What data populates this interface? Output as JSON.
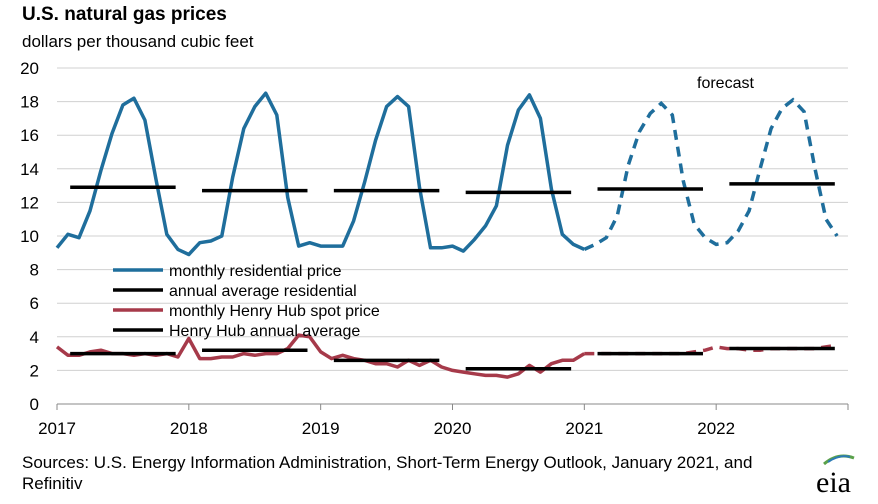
{
  "chart_data": {
    "type": "line",
    "title": "U.S. natural gas prices",
    "subtitle": "dollars per thousand cubic feet",
    "ylim": [
      0,
      20
    ],
    "yticks": [
      0,
      2,
      4,
      6,
      8,
      10,
      12,
      14,
      16,
      18,
      20
    ],
    "xlim": [
      2017,
      2023
    ],
    "xticks": [
      "2017",
      "2018",
      "2019",
      "2020",
      "2021",
      "2022"
    ],
    "grid": "horizontal",
    "legend_position": "middle-left",
    "annotation": "forecast",
    "forecast_start": 2021,
    "series": [
      {
        "name": "monthly residential price",
        "color": "#1f6e9c",
        "style": "solid",
        "forecast_style": "dashed",
        "x": [
          2017.0,
          2017.083,
          2017.167,
          2017.25,
          2017.333,
          2017.417,
          2017.5,
          2017.583,
          2017.667,
          2017.75,
          2017.833,
          2017.917,
          2018.0,
          2018.083,
          2018.167,
          2018.25,
          2018.333,
          2018.417,
          2018.5,
          2018.583,
          2018.667,
          2018.75,
          2018.833,
          2018.917,
          2019.0,
          2019.083,
          2019.167,
          2019.25,
          2019.333,
          2019.417,
          2019.5,
          2019.583,
          2019.667,
          2019.75,
          2019.833,
          2019.917,
          2020.0,
          2020.083,
          2020.167,
          2020.25,
          2020.333,
          2020.417,
          2020.5,
          2020.583,
          2020.667,
          2020.75,
          2020.833,
          2020.917,
          2021.0,
          2021.083,
          2021.167,
          2021.25,
          2021.333,
          2021.417,
          2021.5,
          2021.583,
          2021.667,
          2021.75,
          2021.833,
          2021.917,
          2022.0,
          2022.083,
          2022.167,
          2022.25,
          2022.333,
          2022.417,
          2022.5,
          2022.583,
          2022.667,
          2022.75,
          2022.833,
          2022.917
        ],
        "y": [
          9.3,
          10.1,
          9.9,
          11.5,
          13.9,
          16.1,
          17.8,
          18.2,
          16.9,
          13.4,
          10.1,
          9.2,
          8.9,
          9.6,
          9.7,
          10.0,
          13.5,
          16.4,
          17.7,
          18.5,
          17.2,
          12.3,
          9.4,
          9.6,
          9.4,
          9.4,
          9.4,
          10.9,
          13.2,
          15.7,
          17.7,
          18.3,
          17.7,
          12.9,
          9.3,
          9.3,
          9.4,
          9.1,
          9.8,
          10.6,
          11.8,
          15.4,
          17.5,
          18.4,
          17.0,
          12.8,
          10.1,
          9.5,
          9.2,
          9.5,
          9.9,
          11.2,
          14.2,
          16.2,
          17.3,
          17.9,
          17.2,
          13.3,
          10.7,
          9.9,
          9.5,
          9.6,
          10.3,
          11.5,
          14.0,
          16.4,
          17.6,
          18.1,
          17.4,
          14.0,
          11.0,
          10.0
        ],
        "forecast_from_x": 2021.0
      },
      {
        "name": "annual average residential",
        "color": "#000000",
        "segments": [
          {
            "x0": 2017.1,
            "x1": 2017.9,
            "y": 12.9
          },
          {
            "x0": 2018.1,
            "x1": 2018.9,
            "y": 12.7
          },
          {
            "x0": 2019.1,
            "x1": 2019.9,
            "y": 12.7
          },
          {
            "x0": 2020.1,
            "x1": 2020.9,
            "y": 12.6
          },
          {
            "x0": 2021.1,
            "x1": 2021.9,
            "y": 12.8
          },
          {
            "x0": 2022.1,
            "x1": 2022.9,
            "y": 13.1
          }
        ]
      },
      {
        "name": "monthly Henry Hub spot price",
        "color": "#a63a4a",
        "style": "solid",
        "forecast_style": "dashed",
        "x": [
          2017.0,
          2017.083,
          2017.167,
          2017.25,
          2017.333,
          2017.417,
          2017.5,
          2017.583,
          2017.667,
          2017.75,
          2017.833,
          2017.917,
          2018.0,
          2018.083,
          2018.167,
          2018.25,
          2018.333,
          2018.417,
          2018.5,
          2018.583,
          2018.667,
          2018.75,
          2018.833,
          2018.917,
          2019.0,
          2019.083,
          2019.167,
          2019.25,
          2019.333,
          2019.417,
          2019.5,
          2019.583,
          2019.667,
          2019.75,
          2019.833,
          2019.917,
          2020.0,
          2020.083,
          2020.167,
          2020.25,
          2020.333,
          2020.417,
          2020.5,
          2020.583,
          2020.667,
          2020.75,
          2020.833,
          2020.917,
          2021.0,
          2021.083,
          2021.167,
          2021.25,
          2021.333,
          2021.417,
          2021.5,
          2021.583,
          2021.667,
          2021.75,
          2021.833,
          2021.917,
          2022.0,
          2022.083,
          2022.167,
          2022.25,
          2022.333,
          2022.417,
          2022.5,
          2022.583,
          2022.667,
          2022.75,
          2022.833,
          2022.917
        ],
        "y": [
          3.4,
          2.9,
          2.9,
          3.1,
          3.2,
          3.0,
          3.0,
          2.9,
          3.0,
          2.9,
          3.0,
          2.8,
          3.9,
          2.7,
          2.7,
          2.8,
          2.8,
          3.0,
          2.9,
          3.0,
          3.0,
          3.3,
          4.1,
          4.0,
          3.1,
          2.7,
          2.9,
          2.7,
          2.6,
          2.4,
          2.4,
          2.2,
          2.6,
          2.3,
          2.6,
          2.2,
          2.0,
          1.9,
          1.8,
          1.7,
          1.7,
          1.6,
          1.8,
          2.3,
          1.9,
          2.4,
          2.6,
          2.6,
          3.0,
          3.0,
          3.0,
          3.0,
          3.0,
          3.0,
          3.0,
          3.0,
          3.0,
          3.0,
          3.1,
          3.2,
          3.4,
          3.3,
          3.3,
          3.2,
          3.2,
          3.3,
          3.3,
          3.3,
          3.3,
          3.3,
          3.4,
          3.5
        ],
        "forecast_from_x": 2021.0
      },
      {
        "name": "Henry Hub annual average",
        "color": "#000000",
        "segments": [
          {
            "x0": 2017.1,
            "x1": 2017.9,
            "y": 3.0
          },
          {
            "x0": 2018.1,
            "x1": 2018.9,
            "y": 3.2
          },
          {
            "x0": 2019.1,
            "x1": 2019.9,
            "y": 2.6
          },
          {
            "x0": 2020.1,
            "x1": 2020.9,
            "y": 2.1
          },
          {
            "x0": 2021.1,
            "x1": 2021.9,
            "y": 3.0
          },
          {
            "x0": 2022.1,
            "x1": 2022.9,
            "y": 3.3
          }
        ]
      }
    ]
  },
  "source_note": "Sources: U.S. Energy Information Administration, Short-Term Energy Outlook, January 2021, and Refinitiv",
  "logo": {
    "text": "eia",
    "icon": "eia-logo-icon"
  }
}
